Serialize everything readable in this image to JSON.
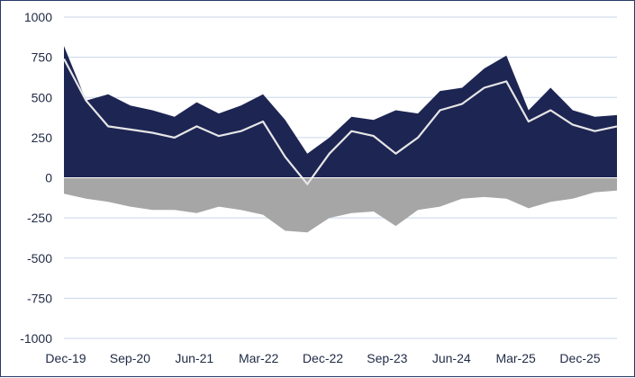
{
  "chart_data": {
    "type": "area",
    "title": "",
    "xlabel": "",
    "ylabel": "",
    "ylim": [
      -1000,
      1000
    ],
    "yticks": [
      1000,
      750,
      500,
      250,
      0,
      -250,
      -500,
      -750,
      -1000
    ],
    "ytick_labels": [
      "1000",
      "750",
      "500",
      "250",
      "0",
      "-250",
      "-500",
      "-750",
      "-1000"
    ],
    "xticks": [
      "Dec-19",
      "Sep-20",
      "Jun-21",
      "Mar-22",
      "Dec-22",
      "Sep-23",
      "Jun-24",
      "Mar-25",
      "Dec-25"
    ],
    "grid": true,
    "colors": {
      "positive": "#1d2553",
      "negative": "#a6a6a6",
      "line": "#e6e6e6",
      "grid": "#c9d6ea",
      "axis": "#1f2a44"
    },
    "x": [
      "Dec-19",
      "Mar-20",
      "Jun-20",
      "Sep-20",
      "Dec-20",
      "Mar-21",
      "Jun-21",
      "Sep-21",
      "Dec-21",
      "Mar-22",
      "Jun-22",
      "Sep-22",
      "Dec-22",
      "Mar-23",
      "Jun-23",
      "Sep-23",
      "Dec-23",
      "Mar-24",
      "Jun-24",
      "Sep-24",
      "Dec-24",
      "Mar-25",
      "Jun-25",
      "Sep-25",
      "Dec-25",
      "Mar-26"
    ],
    "series": [
      {
        "values": [
          820,
          480,
          520,
          450,
          420,
          380,
          470,
          400,
          450,
          520,
          360,
          150,
          250,
          380,
          360,
          420,
          400,
          540,
          560,
          680,
          760,
          420,
          560,
          420,
          380,
          390
        ]
      },
      {
        "values": [
          -100,
          -130,
          -150,
          -180,
          -200,
          -200,
          -220,
          -180,
          -200,
          -230,
          -330,
          -340,
          -250,
          -220,
          -210,
          -300,
          -200,
          -180,
          -130,
          -120,
          -130,
          -190,
          -150,
          -130,
          -90,
          -80
        ]
      },
      {
        "values": [
          740,
          480,
          320,
          300,
          280,
          250,
          320,
          260,
          290,
          350,
          130,
          -40,
          150,
          290,
          260,
          150,
          250,
          420,
          460,
          560,
          600,
          350,
          420,
          330,
          290,
          320
        ]
      }
    ]
  }
}
